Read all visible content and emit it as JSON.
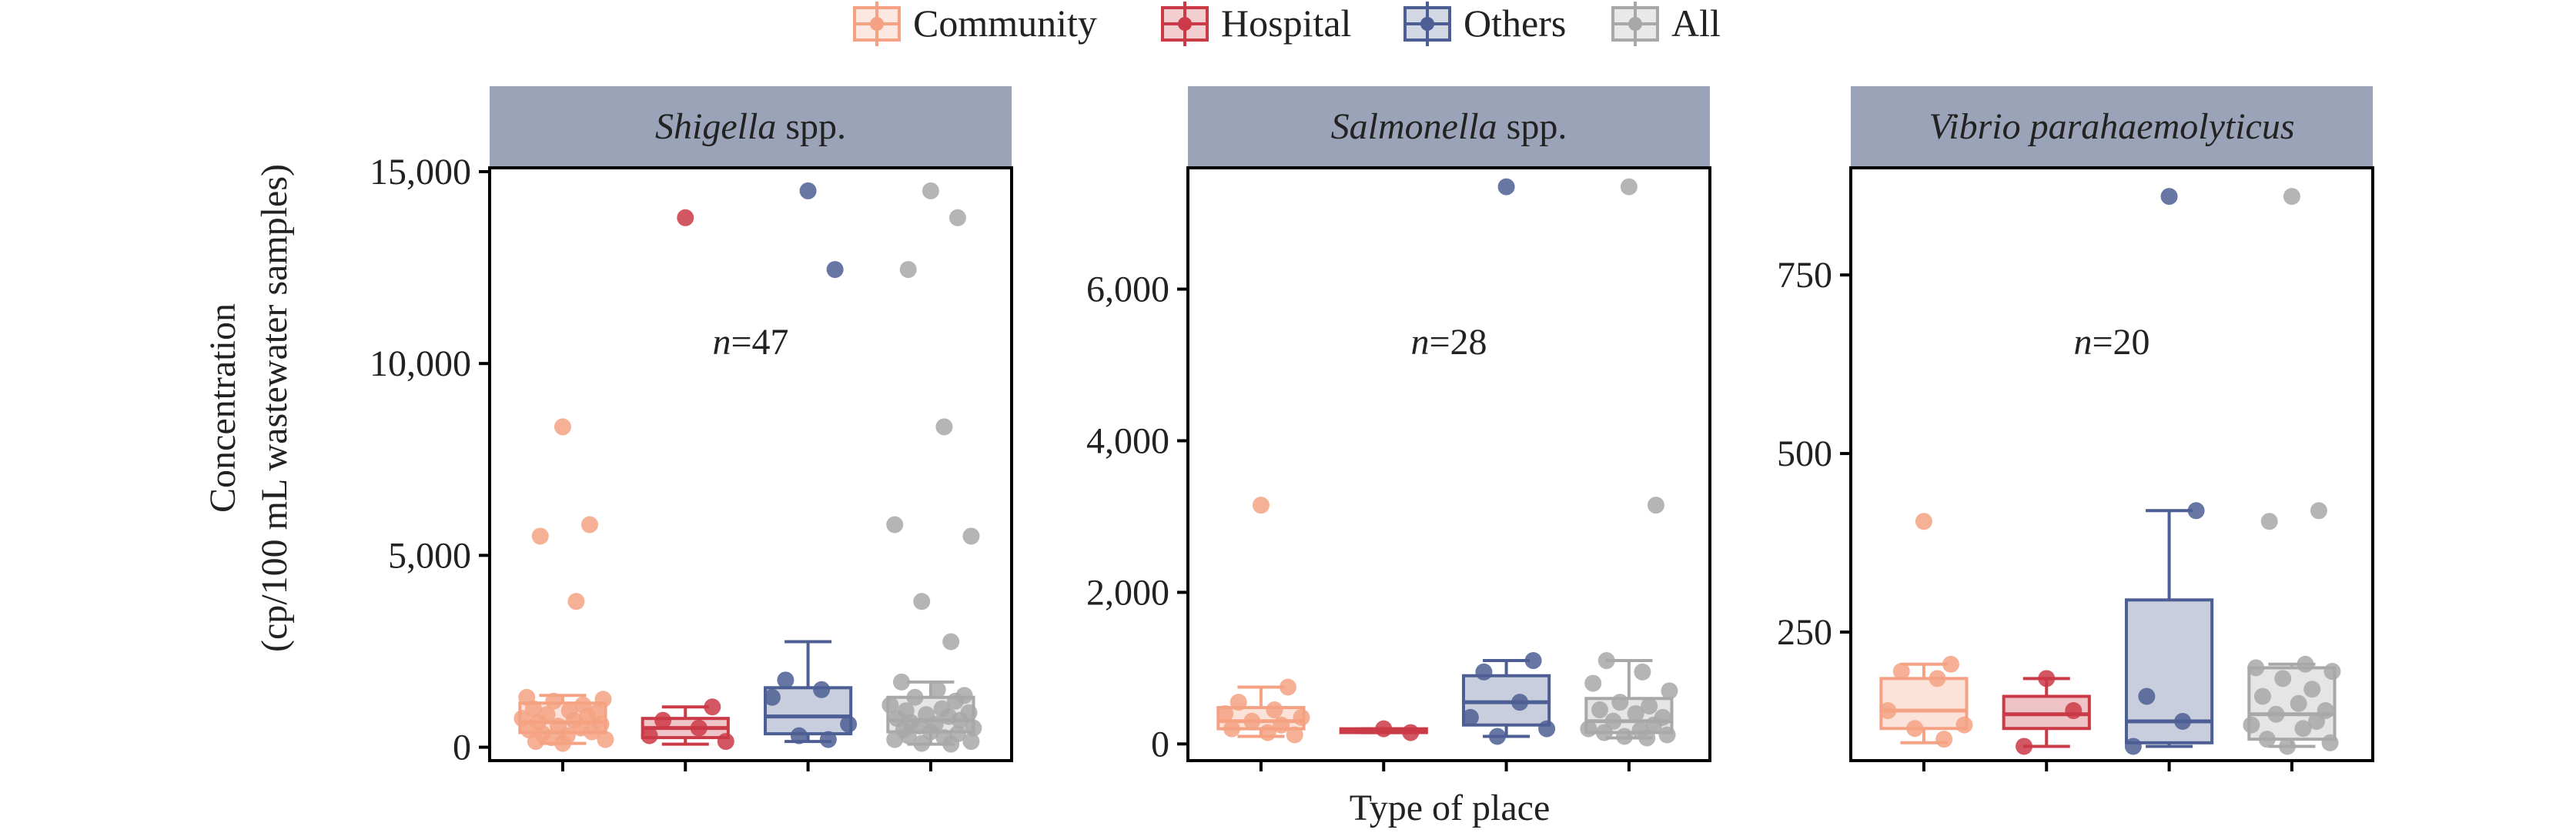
{
  "legend": [
    {
      "label": "Community",
      "color": "#F4A283"
    },
    {
      "label": "Hospital",
      "color": "#CB3A47"
    },
    {
      "label": "Others",
      "color": "#4C5E93"
    },
    {
      "label": "All",
      "color": "#A8A8A8"
    }
  ],
  "ylabel_line1": "Concentration",
  "ylabel_line2": "(cp/100 mL wastewater samples)",
  "xlabel": "Type of place",
  "strip_color": "#9AA3B7",
  "chart_data": [
    {
      "type": "box",
      "title_italic": "Shigella",
      "title_suffix": " spp.",
      "n_prefix": "n",
      "n_value": "=47",
      "ylim": [
        -350,
        15100
      ],
      "yticks": [
        0,
        5000,
        10000,
        15000
      ],
      "ytick_labels": [
        "0",
        "5,000",
        "10,000",
        "15,000"
      ],
      "categories": [
        "Community",
        "Hospital",
        "Others",
        "All"
      ],
      "boxes": [
        {
          "q1": 380,
          "median": 650,
          "q3": 1150,
          "low": 100,
          "high": 1350
        },
        {
          "q1": 250,
          "median": 500,
          "q3": 750,
          "low": 80,
          "high": 1050
        },
        {
          "q1": 350,
          "median": 800,
          "q3": 1550,
          "low": 150,
          "high": 2750
        },
        {
          "q1": 400,
          "median": 700,
          "q3": 1300,
          "low": 80,
          "high": 1700
        }
      ],
      "points": [
        [
          8350,
          5800,
          5500,
          3800,
          1300,
          1250,
          1200,
          1100,
          1000,
          950,
          900,
          850,
          800,
          750,
          700,
          650,
          600,
          550,
          500,
          450,
          400,
          350,
          300,
          250,
          200,
          150,
          100
        ],
        [
          13800,
          1050,
          700,
          500,
          300,
          150
        ],
        [
          14500,
          12450,
          1750,
          1500,
          1300,
          600,
          300,
          200
        ],
        [
          14500,
          13800,
          12450,
          8350,
          5800,
          5500,
          3800,
          2750,
          1700,
          1500,
          1350,
          1300,
          1200,
          1100,
          1000,
          950,
          900,
          850,
          800,
          750,
          700,
          650,
          600,
          550,
          500,
          450,
          400,
          350,
          300,
          250,
          200,
          150,
          100,
          80
        ]
      ]
    },
    {
      "type": "box",
      "title_italic": "Salmonella",
      "title_suffix": " spp.",
      "n_prefix": "n",
      "n_value": "=28",
      "ylim": [
        -220,
        7600
      ],
      "yticks": [
        0,
        2000,
        4000,
        6000
      ],
      "ytick_labels": [
        "0",
        "2,000",
        "4,000",
        "6,000"
      ],
      "categories": [
        "Community",
        "Hospital",
        "Others",
        "All"
      ],
      "boxes": [
        {
          "q1": 200,
          "median": 300,
          "q3": 480,
          "low": 100,
          "high": 750
        },
        {
          "q1": 150,
          "median": 180,
          "q3": 200,
          "low": 150,
          "high": 200
        },
        {
          "q1": 250,
          "median": 550,
          "q3": 900,
          "low": 100,
          "high": 1100
        },
        {
          "q1": 150,
          "median": 300,
          "q3": 600,
          "low": 80,
          "high": 1100
        }
      ],
      "points": [
        [
          3150,
          750,
          550,
          450,
          400,
          350,
          300,
          250,
          200,
          150,
          120
        ],
        [
          200,
          150
        ],
        [
          7350,
          1100,
          950,
          550,
          350,
          200,
          100
        ],
        [
          7350,
          3150,
          1100,
          950,
          800,
          700,
          550,
          500,
          450,
          400,
          350,
          300,
          250,
          200,
          180,
          150,
          120,
          100,
          80
        ]
      ]
    },
    {
      "type": "box",
      "title_italic": "Vibrio parahaemolyticus",
      "title_suffix": "",
      "n_prefix": "n",
      "n_value": "=20",
      "ylim": [
        70,
        900
      ],
      "yticks": [
        250,
        500,
        750
      ],
      "ytick_labels": [
        "250",
        "500",
        "750"
      ],
      "categories": [
        "Community",
        "Hospital",
        "Others",
        "All"
      ],
      "boxes": [
        {
          "q1": 115,
          "median": 140,
          "q3": 185,
          "low": 95,
          "high": 205
        },
        {
          "q1": 115,
          "median": 135,
          "q3": 160,
          "low": 90,
          "high": 185
        },
        {
          "q1": 95,
          "median": 125,
          "q3": 295,
          "low": 90,
          "high": 420
        },
        {
          "q1": 100,
          "median": 135,
          "q3": 200,
          "low": 90,
          "high": 205
        }
      ],
      "points": [
        [
          405,
          205,
          195,
          185,
          140,
          120,
          115,
          100
        ],
        [
          185,
          140,
          90
        ],
        [
          860,
          420,
          160,
          125,
          90
        ],
        [
          860,
          420,
          405,
          205,
          200,
          195,
          185,
          170,
          160,
          150,
          140,
          135,
          125,
          120,
          115,
          100,
          95,
          90
        ]
      ]
    }
  ]
}
